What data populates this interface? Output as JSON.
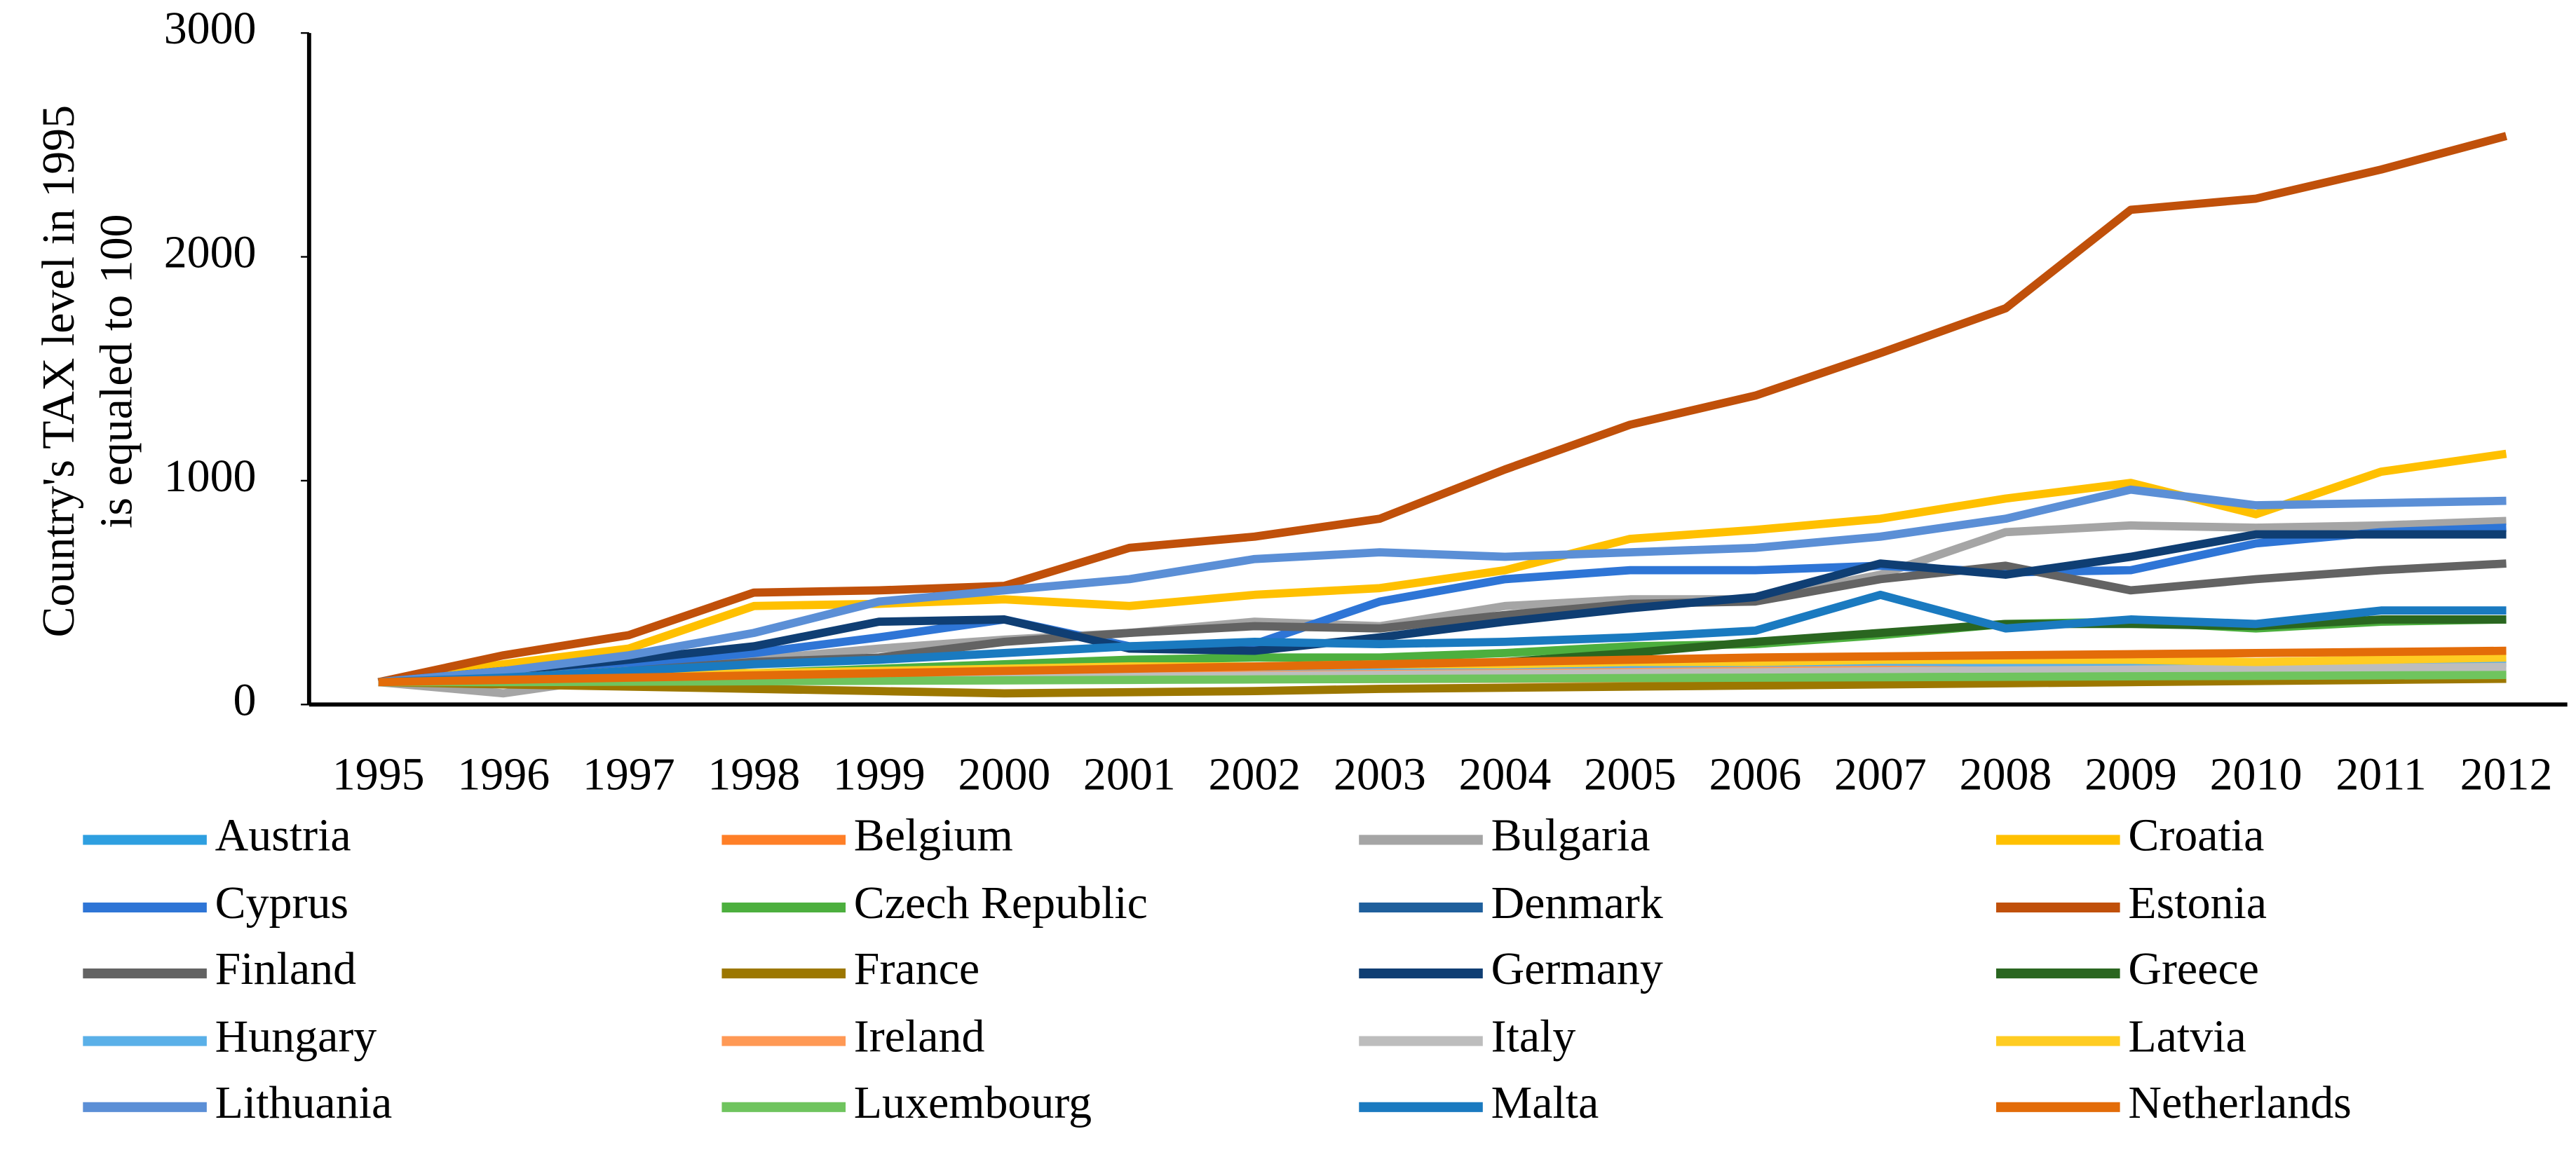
{
  "chart_data": {
    "type": "line",
    "y_label": [
      "Country's TAX level in 1995",
      "is equaled to 100"
    ],
    "categories": [
      "1995",
      "1996",
      "1997",
      "1998",
      "1999",
      "2000",
      "2001",
      "2002",
      "2003",
      "2004",
      "2005",
      "2006",
      "2007",
      "2008",
      "2009",
      "2010",
      "2011",
      "2012"
    ],
    "ylim": [
      0,
      3000
    ],
    "yticks": [
      0,
      1000,
      2000,
      3000
    ],
    "series": [
      {
        "name": "Austria",
        "color": "#2e9fe0",
        "values": [
          100,
          105,
          110,
          115,
          118,
          120,
          122,
          125,
          128,
          130,
          132,
          135,
          138,
          140,
          142,
          145,
          148,
          150
        ]
      },
      {
        "name": "Belgium",
        "color": "#ff7f27",
        "values": [
          100,
          102,
          104,
          106,
          108,
          110,
          112,
          113,
          114,
          115,
          116,
          118,
          120,
          122,
          124,
          126,
          128,
          130
        ]
      },
      {
        "name": "Bulgaria",
        "color": "#a5a5a5",
        "values": [
          100,
          50,
          130,
          200,
          250,
          290,
          320,
          370,
          350,
          440,
          470,
          470,
          580,
          770,
          800,
          790,
          800,
          820
        ]
      },
      {
        "name": "Croatia",
        "color": "#ffc000",
        "values": [
          100,
          180,
          250,
          440,
          450,
          470,
          440,
          490,
          520,
          600,
          740,
          780,
          830,
          920,
          990,
          850,
          1040,
          1120
        ]
      },
      {
        "name": "Cyprus",
        "color": "#2e75d6",
        "values": [
          100,
          140,
          180,
          230,
          300,
          380,
          260,
          270,
          460,
          560,
          600,
          600,
          620,
          590,
          600,
          720,
          770,
          790
        ]
      },
      {
        "name": "Czech Republic",
        "color": "#4caf3e",
        "values": [
          100,
          110,
          120,
          140,
          160,
          180,
          200,
          210,
          210,
          230,
          260,
          270,
          310,
          360,
          370,
          340,
          370,
          380
        ]
      },
      {
        "name": "Denmark",
        "color": "#1f5f9c",
        "values": [
          100,
          105,
          110,
          115,
          120,
          125,
          130,
          135,
          140,
          145,
          150,
          155,
          160,
          165,
          170,
          175,
          180,
          185
        ]
      },
      {
        "name": "Estonia",
        "color": "#c0500a",
        "values": [
          100,
          220,
          310,
          500,
          510,
          530,
          700,
          750,
          830,
          1050,
          1250,
          1380,
          1570,
          1770,
          2210,
          2260,
          2390,
          2540
        ]
      },
      {
        "name": "Finland",
        "color": "#636363",
        "values": [
          100,
          120,
          150,
          190,
          210,
          280,
          320,
          350,
          340,
          400,
          450,
          460,
          560,
          620,
          510,
          560,
          600,
          630
        ]
      },
      {
        "name": "France",
        "color": "#9c7700",
        "values": [
          100,
          90,
          80,
          70,
          60,
          50,
          55,
          60,
          70,
          75,
          80,
          85,
          90,
          95,
          100,
          105,
          110,
          115
        ]
      },
      {
        "name": "Germany",
        "color": "#0f3e73",
        "values": [
          100,
          150,
          200,
          260,
          370,
          380,
          250,
          240,
          300,
          370,
          430,
          480,
          630,
          580,
          660,
          760,
          760,
          760
        ]
      },
      {
        "name": "Greece",
        "color": "#2a6620",
        "values": [
          100,
          110,
          110,
          120,
          130,
          140,
          150,
          160,
          170,
          190,
          230,
          280,
          320,
          360,
          360,
          350,
          380,
          380
        ]
      },
      {
        "name": "Hungary",
        "color": "#5ab0e8",
        "values": [
          100,
          110,
          115,
          120,
          125,
          130,
          135,
          140,
          145,
          150,
          155,
          160,
          165,
          170,
          175,
          180,
          185,
          190
        ]
      },
      {
        "name": "Ireland",
        "color": "#ff9955",
        "values": [
          100,
          108,
          112,
          118,
          122,
          128,
          130,
          132,
          136,
          140,
          145,
          150,
          155,
          150,
          140,
          135,
          138,
          140
        ]
      },
      {
        "name": "Italy",
        "color": "#bdbdbd",
        "values": [
          100,
          104,
          108,
          112,
          116,
          120,
          124,
          128,
          132,
          136,
          140,
          144,
          148,
          152,
          156,
          160,
          164,
          168
        ]
      },
      {
        "name": "Latvia",
        "color": "#ffcc22",
        "values": [
          100,
          120,
          150,
          140,
          150,
          160,
          170,
          170,
          180,
          180,
          190,
          190,
          200,
          200,
          200,
          190,
          200,
          210
        ]
      },
      {
        "name": "Lithuania",
        "color": "#5b8fd6",
        "values": [
          100,
          150,
          220,
          320,
          460,
          510,
          560,
          650,
          680,
          660,
          680,
          700,
          750,
          830,
          960,
          890,
          900,
          910
        ]
      },
      {
        "name": "Luxembourg",
        "color": "#6fc45e",
        "values": [
          100,
          100,
          102,
          104,
          106,
          108,
          110,
          112,
          114,
          116,
          118,
          120,
          122,
          124,
          126,
          128,
          130,
          132
        ]
      },
      {
        "name": "Malta",
        "color": "#1a7ac0",
        "values": [
          100,
          120,
          150,
          180,
          200,
          230,
          260,
          280,
          270,
          280,
          300,
          330,
          490,
          340,
          380,
          360,
          420,
          420
        ]
      },
      {
        "name": "Netherlands",
        "color": "#e36c09",
        "values": [
          100,
          110,
          120,
          130,
          140,
          150,
          160,
          170,
          180,
          190,
          200,
          210,
          215,
          220,
          225,
          230,
          235,
          240
        ]
      }
    ]
  }
}
